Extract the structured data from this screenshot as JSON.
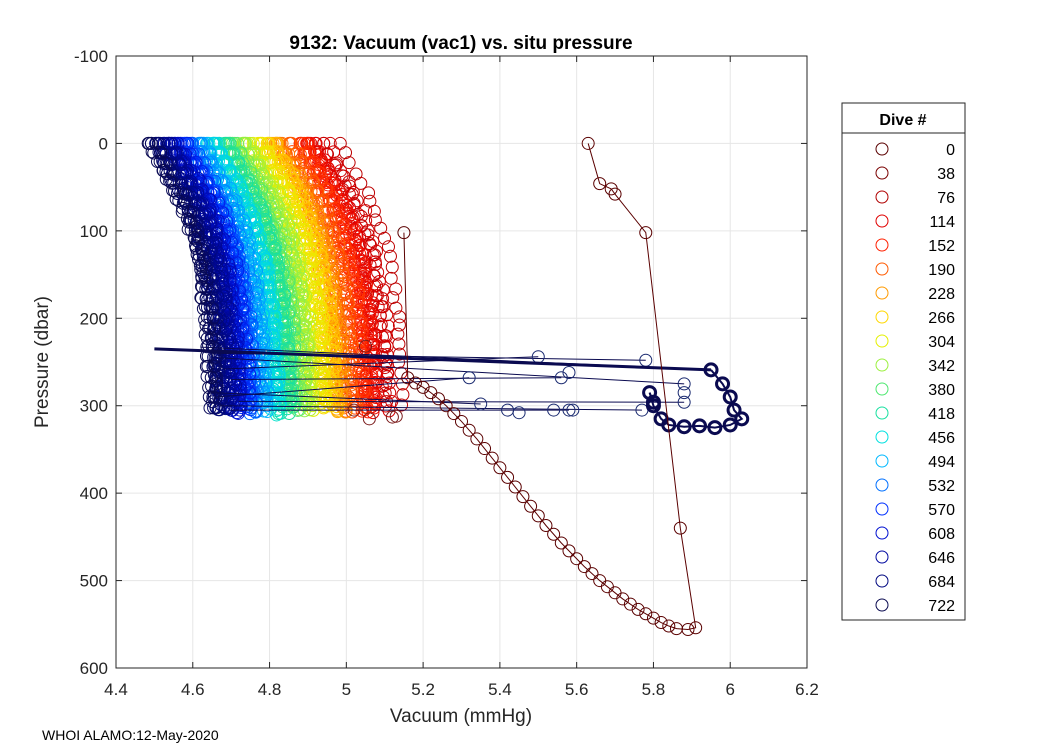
{
  "chart_data": {
    "type": "scatter",
    "title": "9132: Vacuum (vac1) vs. situ pressure",
    "xlabel": "Vacuum (mmHg)",
    "ylabel": "Pressure (dbar)",
    "xlim": [
      4.4,
      6.2
    ],
    "ylim": [
      -100,
      600
    ],
    "y_reversed": true,
    "xticks": [
      4.4,
      4.6,
      4.8,
      5,
      5.2,
      5.4,
      5.6,
      5.8,
      6,
      6.2
    ],
    "xtick_labels": [
      "4.4",
      "4.6",
      "4.8",
      "5",
      "5.2",
      "5.4",
      "5.6",
      "5.8",
      "6",
      "6.2"
    ],
    "yticks": [
      -100,
      0,
      100,
      200,
      300,
      400,
      500,
      600
    ],
    "ytick_labels": [
      "-100",
      "0",
      "100",
      "200",
      "300",
      "400",
      "500",
      "600"
    ],
    "grid": true,
    "legend": {
      "title": "Dive #",
      "placement": "right",
      "entries": [
        {
          "label": "0",
          "color": "#5a0000"
        },
        {
          "label": "38",
          "color": "#7a0000"
        },
        {
          "label": "76",
          "color": "#b00000"
        },
        {
          "label": "114",
          "color": "#e00000"
        },
        {
          "label": "152",
          "color": "#ff2000"
        },
        {
          "label": "190",
          "color": "#ff5a00"
        },
        {
          "label": "228",
          "color": "#ff9a00"
        },
        {
          "label": "266",
          "color": "#ffd800"
        },
        {
          "label": "304",
          "color": "#e4f000"
        },
        {
          "label": "342",
          "color": "#9cf040"
        },
        {
          "label": "380",
          "color": "#4ee870"
        },
        {
          "label": "418",
          "color": "#18e0a0"
        },
        {
          "label": "456",
          "color": "#00e0e0"
        },
        {
          "label": "494",
          "color": "#00b8ff"
        },
        {
          "label": "532",
          "color": "#0070ff"
        },
        {
          "label": "570",
          "color": "#0030ff"
        },
        {
          "label": "608",
          "color": "#0010d0"
        },
        {
          "label": "646",
          "color": "#0008a0"
        },
        {
          "label": "684",
          "color": "#000880"
        },
        {
          "label": "722",
          "color": "#0a0a50"
        }
      ]
    },
    "dive0_profile": [
      [
        5.63,
        0
      ],
      [
        5.66,
        46
      ],
      [
        5.69,
        52
      ],
      [
        5.7,
        58
      ],
      [
        5.78,
        102
      ],
      [
        5.87,
        440
      ],
      [
        5.91,
        554
      ],
      [
        5.89,
        556
      ],
      [
        5.86,
        555
      ],
      [
        5.84,
        552
      ],
      [
        5.82,
        548
      ],
      [
        5.8,
        543
      ],
      [
        5.78,
        538
      ],
      [
        5.76,
        533
      ],
      [
        5.74,
        527
      ],
      [
        5.72,
        521
      ],
      [
        5.7,
        514
      ],
      [
        5.68,
        507
      ],
      [
        5.66,
        500
      ],
      [
        5.64,
        492
      ],
      [
        5.62,
        484
      ],
      [
        5.6,
        475
      ],
      [
        5.58,
        466
      ],
      [
        5.56,
        457
      ],
      [
        5.54,
        447
      ],
      [
        5.52,
        437
      ],
      [
        5.5,
        426
      ],
      [
        5.48,
        415
      ],
      [
        5.46,
        404
      ],
      [
        5.44,
        393
      ],
      [
        5.42,
        382
      ],
      [
        5.4,
        371
      ],
      [
        5.38,
        360
      ],
      [
        5.36,
        349
      ],
      [
        5.34,
        338
      ],
      [
        5.32,
        328
      ],
      [
        5.3,
        318
      ],
      [
        5.28,
        309
      ],
      [
        5.26,
        300
      ],
      [
        5.24,
        292
      ],
      [
        5.22,
        285
      ],
      [
        5.2,
        279
      ],
      [
        5.18,
        274
      ],
      [
        5.16,
        268
      ],
      [
        5.15,
        102
      ]
    ],
    "late_dive_profile": [
      [
        5.95,
        259
      ],
      [
        5.98,
        275
      ],
      [
        6.0,
        290
      ],
      [
        6.01,
        305
      ],
      [
        6.03,
        315
      ],
      [
        6.0,
        322
      ],
      [
        5.96,
        325
      ],
      [
        5.92,
        323
      ],
      [
        5.88,
        324
      ],
      [
        5.84,
        322
      ],
      [
        5.82,
        315
      ],
      [
        5.8,
        300
      ],
      [
        5.79,
        285
      ],
      [
        5.8,
        296
      ]
    ],
    "annotation": "WHOI ALAMO:12-May-2020"
  }
}
